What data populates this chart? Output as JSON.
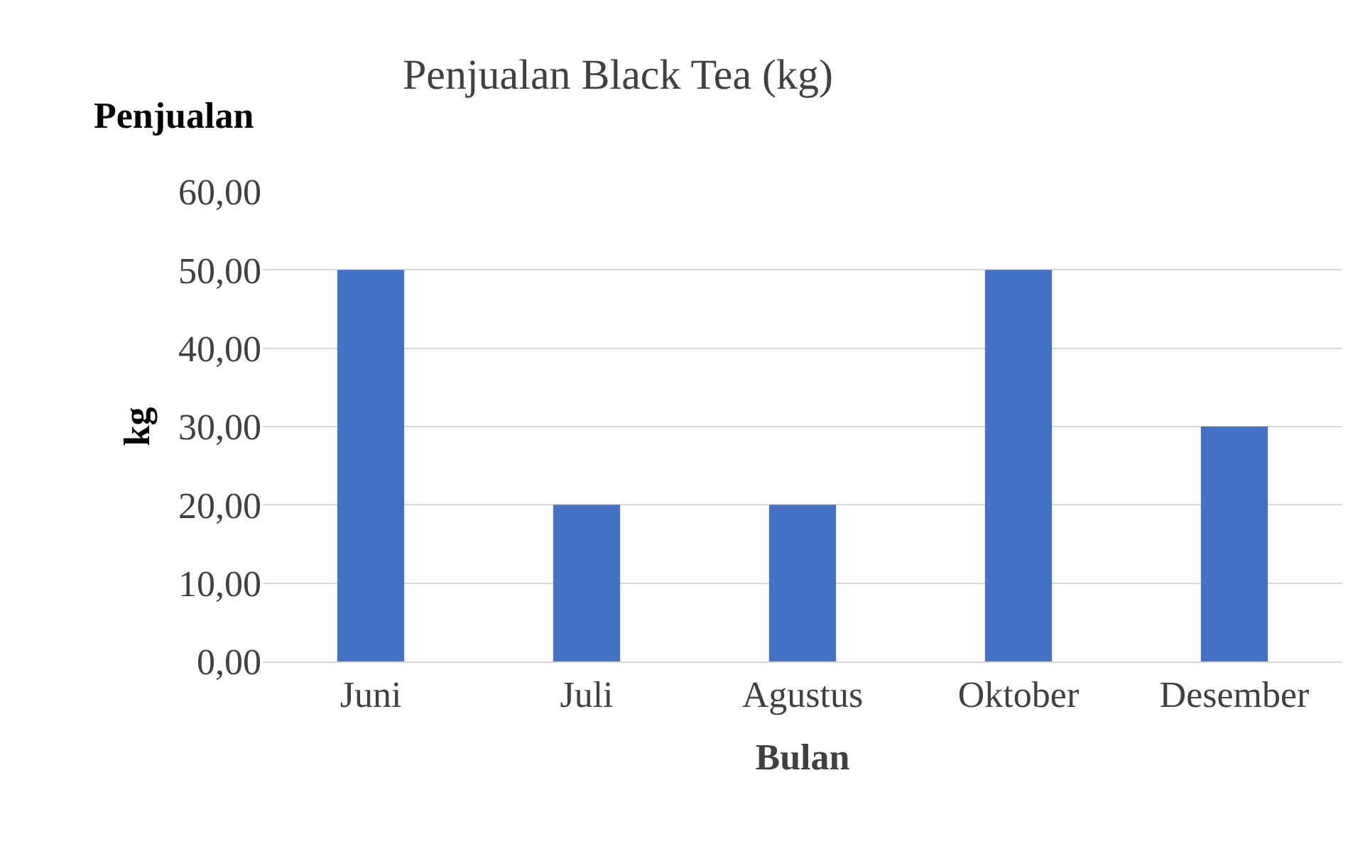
{
  "chart_data": {
    "type": "bar",
    "title": "Penjualan Black Tea (kg)",
    "annotations": [
      "Penjualan"
    ],
    "xlabel": "Bulan",
    "ylabel": "kg",
    "categories": [
      "Juni",
      "Juli",
      "Agustus",
      "Oktober",
      "Desember"
    ],
    "values": [
      50,
      20,
      20,
      50,
      30
    ],
    "color": "#4472c4",
    "ylim": [
      0,
      60
    ],
    "yticks": [
      {
        "value": 0,
        "label": "0,00"
      },
      {
        "value": 10,
        "label": "10,00"
      },
      {
        "value": 20,
        "label": "20,00"
      },
      {
        "value": 30,
        "label": "30,00"
      },
      {
        "value": 40,
        "label": "40,00"
      },
      {
        "value": 50,
        "label": "50,00"
      },
      {
        "value": 60,
        "label": "60,00"
      }
    ],
    "grid": "y",
    "legend": false
  }
}
